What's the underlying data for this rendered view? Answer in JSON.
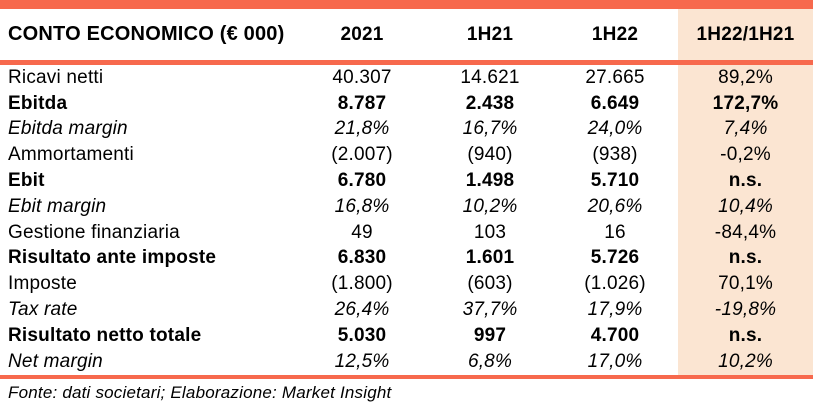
{
  "chart_data": {
    "type": "table",
    "title": "CONTO ECONOMICO (€ 000)",
    "columns": [
      "2021",
      "1H21",
      "1H22",
      "1H22/1H21"
    ],
    "highlight_column": "1H22/1H21",
    "rows": [
      {
        "label": "Ricavi netti",
        "style": "regular",
        "values": [
          "40.307",
          "14.621",
          "27.665",
          "89,2%"
        ]
      },
      {
        "label": "Ebitda",
        "style": "bold",
        "values": [
          "8.787",
          "2.438",
          "6.649",
          "172,7%"
        ]
      },
      {
        "label": "Ebitda margin",
        "style": "italic",
        "values": [
          "21,8%",
          "16,7%",
          "24,0%",
          "7,4%"
        ]
      },
      {
        "label": "Ammortamenti",
        "style": "regular",
        "values": [
          "(2.007)",
          "(940)",
          "(938)",
          "-0,2%"
        ]
      },
      {
        "label": "Ebit",
        "style": "bold",
        "values": [
          "6.780",
          "1.498",
          "5.710",
          "n.s."
        ]
      },
      {
        "label": "Ebit margin",
        "style": "italic",
        "values": [
          "16,8%",
          "10,2%",
          "20,6%",
          "10,4%"
        ]
      },
      {
        "label": "Gestione finanziaria",
        "style": "regular",
        "values": [
          "49",
          "103",
          "16",
          "-84,4%"
        ]
      },
      {
        "label": "Risultato ante imposte",
        "style": "bold",
        "values": [
          "6.830",
          "1.601",
          "5.726",
          "n.s."
        ]
      },
      {
        "label": "Imposte",
        "style": "regular",
        "values": [
          "(1.800)",
          "(603)",
          "(1.026)",
          "70,1%"
        ]
      },
      {
        "label": "Tax rate",
        "style": "italic",
        "values": [
          "26,4%",
          "37,7%",
          "17,9%",
          "-19,8%"
        ]
      },
      {
        "label": "Risultato netto totale",
        "style": "bold",
        "values": [
          "5.030",
          "997",
          "4.700",
          "n.s."
        ]
      },
      {
        "label": "Net margin",
        "style": "italic",
        "values": [
          "12,5%",
          "6,8%",
          "17,0%",
          "10,2%"
        ]
      }
    ]
  },
  "source_note": "Fonte: dati societari; Elaborazione: Market Insight",
  "colors": {
    "accent": "#F7694D",
    "highlight_bg": "#FBE5D2",
    "text": "#000000",
    "background": "#FFFFFF"
  }
}
